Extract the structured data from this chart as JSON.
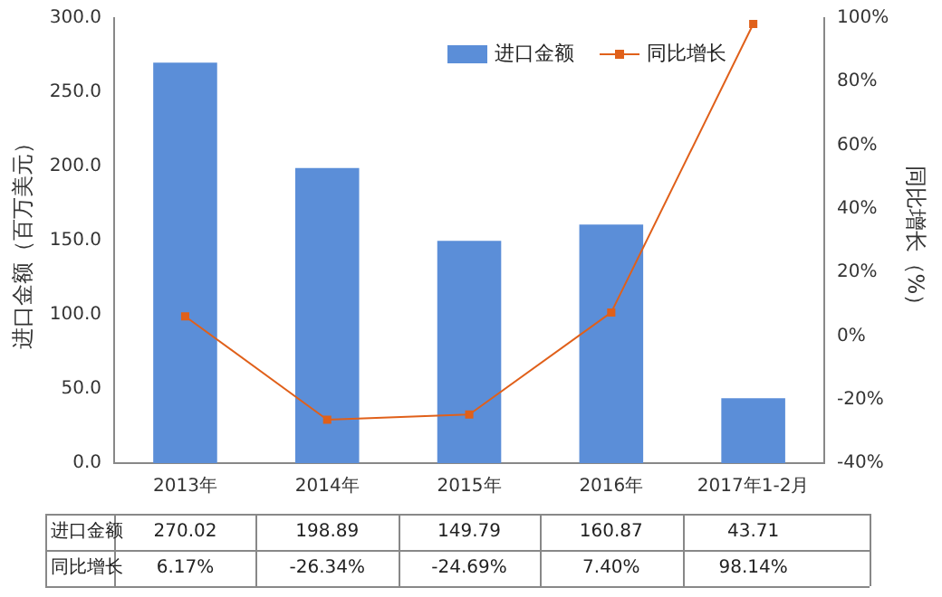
{
  "chart_data": {
    "type": "bar",
    "xlabel": null,
    "ylabel": "进口金额（百万美元）",
    "y2label": "同比增长（%）",
    "categories": [
      "2013年",
      "2014年",
      "2015年",
      "2016年",
      "2017年1-2月"
    ],
    "series": [
      {
        "name": "进口金额",
        "color": "#5b8ed8",
        "values": [
          270.02,
          198.89,
          149.79,
          160.87,
          43.71
        ]
      },
      {
        "name": "同比增长",
        "type": "line",
        "axis": "y2",
        "color": "#e0601a",
        "values": [
          6.17,
          -26.34,
          -24.69,
          7.4,
          98.14
        ]
      }
    ],
    "value_labels": [
      [
        "270.02",
        "198.89",
        "149.79",
        "160.87",
        "43.71"
      ],
      [
        "6.17%",
        "-26.34%",
        "-24.69%",
        "7.40%",
        "98.14%"
      ]
    ],
    "ylim": [
      0,
      300
    ],
    "yticks": [
      {
        "value": 0,
        "label": "0.0"
      },
      {
        "value": 50,
        "label": "50.0"
      },
      {
        "value": 100,
        "label": "100.0"
      },
      {
        "value": 150,
        "label": "150.0"
      },
      {
        "value": 200,
        "label": "200.0"
      },
      {
        "value": 250,
        "label": "250.0"
      },
      {
        "value": 300,
        "label": "300.0"
      }
    ],
    "y2lim": [
      -40,
      100
    ],
    "y2ticks": [
      {
        "value": -40,
        "label": "-40%"
      },
      {
        "value": -20,
        "label": "-20%"
      },
      {
        "value": 0,
        "label": "0%"
      },
      {
        "value": 20,
        "label": "20%"
      },
      {
        "value": 40,
        "label": "40%"
      },
      {
        "value": 60,
        "label": "60%"
      },
      {
        "value": 80,
        "label": "80%"
      },
      {
        "value": 100,
        "label": "100%"
      }
    ],
    "legend": "top right",
    "marker": "square",
    "grid": false
  }
}
